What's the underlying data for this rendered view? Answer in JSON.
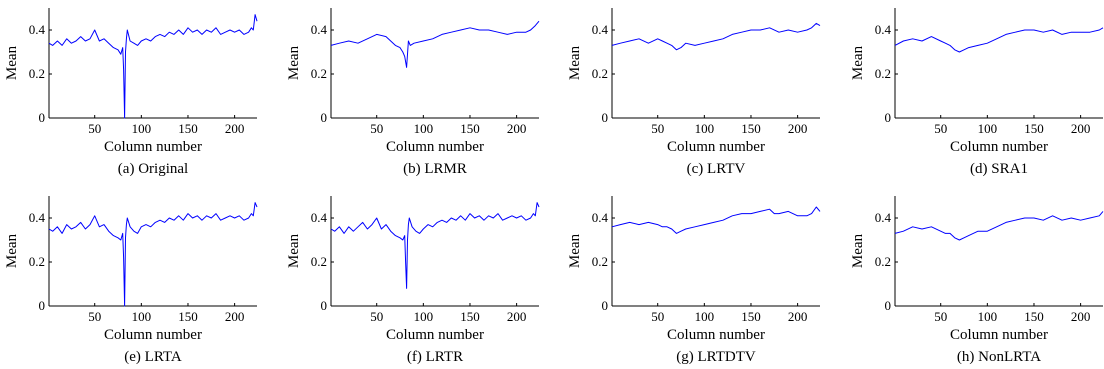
{
  "chart_data": [
    {
      "type": "line",
      "caption": "(a) Original",
      "xlabel": "Column number",
      "ylabel": "Mean",
      "xlim": [
        1,
        224
      ],
      "ylim": [
        0,
        0.5
      ],
      "xticks": [
        50,
        100,
        150,
        200
      ],
      "yticks": [
        0,
        0.2,
        0.4
      ],
      "yticklabels": [
        "0",
        "0.2",
        "0.4"
      ],
      "series_color": "#0000ff",
      "x": [
        1,
        5,
        10,
        15,
        20,
        25,
        30,
        35,
        40,
        45,
        50,
        55,
        60,
        65,
        70,
        75,
        78,
        80,
        81,
        82,
        83,
        84,
        85,
        88,
        92,
        96,
        100,
        105,
        110,
        115,
        120,
        125,
        130,
        135,
        140,
        145,
        150,
        155,
        160,
        165,
        170,
        175,
        180,
        185,
        190,
        195,
        200,
        205,
        210,
        215,
        218,
        220,
        222,
        224
      ],
      "y": [
        0.34,
        0.33,
        0.35,
        0.33,
        0.36,
        0.34,
        0.35,
        0.37,
        0.35,
        0.36,
        0.4,
        0.35,
        0.36,
        0.34,
        0.32,
        0.31,
        0.29,
        0.32,
        0.22,
        0.0,
        0.3,
        0.36,
        0.4,
        0.35,
        0.34,
        0.33,
        0.35,
        0.36,
        0.35,
        0.37,
        0.38,
        0.37,
        0.39,
        0.38,
        0.4,
        0.38,
        0.41,
        0.39,
        0.4,
        0.38,
        0.4,
        0.39,
        0.41,
        0.38,
        0.39,
        0.4,
        0.39,
        0.4,
        0.38,
        0.39,
        0.41,
        0.4,
        0.47,
        0.44
      ]
    },
    {
      "type": "line",
      "caption": "(b) LRMR",
      "xlabel": "Column number",
      "ylabel": "Mean",
      "xlim": [
        1,
        224
      ],
      "ylim": [
        0,
        0.5
      ],
      "xticks": [
        50,
        100,
        150,
        200
      ],
      "yticks": [
        0,
        0.2,
        0.4
      ],
      "yticklabels": [
        "0",
        "0.2",
        "0.4"
      ],
      "series_color": "#0000ff",
      "x": [
        1,
        10,
        20,
        30,
        40,
        50,
        60,
        65,
        70,
        75,
        78,
        80,
        82,
        84,
        86,
        90,
        100,
        110,
        120,
        130,
        140,
        150,
        160,
        170,
        180,
        190,
        200,
        210,
        215,
        220,
        224
      ],
      "y": [
        0.33,
        0.34,
        0.35,
        0.34,
        0.36,
        0.38,
        0.37,
        0.35,
        0.33,
        0.32,
        0.3,
        0.28,
        0.23,
        0.35,
        0.33,
        0.34,
        0.35,
        0.36,
        0.38,
        0.39,
        0.4,
        0.41,
        0.4,
        0.4,
        0.39,
        0.38,
        0.39,
        0.39,
        0.4,
        0.42,
        0.44
      ]
    },
    {
      "type": "line",
      "caption": "(c) LRTV",
      "xlabel": "Column number",
      "ylabel": "Mean",
      "xlim": [
        1,
        224
      ],
      "ylim": [
        0,
        0.5
      ],
      "xticks": [
        50,
        100,
        150,
        200
      ],
      "yticks": [
        0,
        0.2,
        0.4
      ],
      "yticklabels": [
        "0",
        "0.2",
        "0.4"
      ],
      "series_color": "#0000ff",
      "x": [
        1,
        10,
        20,
        30,
        40,
        50,
        55,
        60,
        65,
        70,
        75,
        80,
        90,
        100,
        110,
        120,
        130,
        140,
        150,
        160,
        170,
        180,
        190,
        200,
        210,
        215,
        220,
        224
      ],
      "y": [
        0.33,
        0.34,
        0.35,
        0.36,
        0.34,
        0.36,
        0.35,
        0.34,
        0.33,
        0.31,
        0.32,
        0.34,
        0.33,
        0.34,
        0.35,
        0.36,
        0.38,
        0.39,
        0.4,
        0.4,
        0.41,
        0.39,
        0.4,
        0.39,
        0.4,
        0.41,
        0.43,
        0.42
      ]
    },
    {
      "type": "line",
      "caption": "(d) SRA1",
      "xlabel": "Column number",
      "ylabel": "Mean",
      "xlim": [
        1,
        224
      ],
      "ylim": [
        0,
        0.5
      ],
      "xticks": [
        50,
        100,
        150,
        200
      ],
      "yticks": [
        0,
        0.2,
        0.4
      ],
      "yticklabels": [
        "0",
        "0.2",
        "0.4"
      ],
      "series_color": "#0000ff",
      "x": [
        1,
        10,
        20,
        30,
        40,
        50,
        55,
        60,
        65,
        70,
        75,
        80,
        90,
        100,
        110,
        120,
        130,
        140,
        150,
        160,
        170,
        180,
        190,
        200,
        210,
        220,
        224
      ],
      "y": [
        0.33,
        0.35,
        0.36,
        0.35,
        0.37,
        0.35,
        0.34,
        0.33,
        0.31,
        0.3,
        0.31,
        0.32,
        0.33,
        0.34,
        0.36,
        0.38,
        0.39,
        0.4,
        0.4,
        0.39,
        0.4,
        0.38,
        0.39,
        0.39,
        0.39,
        0.4,
        0.41
      ]
    },
    {
      "type": "line",
      "caption": "(e) LRTA",
      "xlabel": "Column number",
      "ylabel": "Mean",
      "xlim": [
        1,
        224
      ],
      "ylim": [
        0,
        0.5
      ],
      "xticks": [
        50,
        100,
        150,
        200
      ],
      "yticks": [
        0,
        0.2,
        0.4
      ],
      "yticklabels": [
        "0",
        "0.2",
        "0.4"
      ],
      "series_color": "#0000ff",
      "x": [
        1,
        5,
        10,
        15,
        20,
        25,
        30,
        35,
        40,
        45,
        50,
        55,
        60,
        65,
        70,
        75,
        78,
        80,
        81,
        82,
        83,
        84,
        85,
        88,
        92,
        96,
        100,
        105,
        110,
        115,
        120,
        125,
        130,
        135,
        140,
        145,
        150,
        155,
        160,
        165,
        170,
        175,
        180,
        185,
        190,
        195,
        200,
        205,
        210,
        215,
        218,
        220,
        222,
        224
      ],
      "y": [
        0.35,
        0.34,
        0.36,
        0.33,
        0.37,
        0.35,
        0.36,
        0.38,
        0.35,
        0.37,
        0.41,
        0.36,
        0.37,
        0.34,
        0.32,
        0.31,
        0.3,
        0.33,
        0.22,
        0.0,
        0.31,
        0.37,
        0.4,
        0.36,
        0.34,
        0.33,
        0.36,
        0.37,
        0.36,
        0.38,
        0.39,
        0.38,
        0.4,
        0.39,
        0.41,
        0.39,
        0.42,
        0.4,
        0.41,
        0.39,
        0.41,
        0.4,
        0.42,
        0.39,
        0.4,
        0.41,
        0.4,
        0.41,
        0.39,
        0.4,
        0.42,
        0.41,
        0.47,
        0.45
      ]
    },
    {
      "type": "line",
      "caption": "(f) LRTR",
      "xlabel": "Column number",
      "ylabel": "Mean",
      "xlim": [
        1,
        224
      ],
      "ylim": [
        0,
        0.5
      ],
      "xticks": [
        50,
        100,
        150,
        200
      ],
      "yticks": [
        0,
        0.2,
        0.4
      ],
      "yticklabels": [
        "0",
        "0.2",
        "0.4"
      ],
      "series_color": "#0000ff",
      "x": [
        1,
        5,
        10,
        15,
        20,
        25,
        30,
        35,
        40,
        45,
        50,
        55,
        60,
        65,
        70,
        75,
        78,
        80,
        81,
        82,
        83,
        84,
        85,
        88,
        92,
        96,
        100,
        105,
        110,
        115,
        120,
        125,
        130,
        135,
        140,
        145,
        150,
        155,
        160,
        165,
        170,
        175,
        180,
        185,
        190,
        195,
        200,
        205,
        210,
        215,
        218,
        220,
        222,
        224
      ],
      "y": [
        0.35,
        0.34,
        0.36,
        0.33,
        0.36,
        0.34,
        0.36,
        0.38,
        0.35,
        0.37,
        0.4,
        0.35,
        0.37,
        0.34,
        0.32,
        0.31,
        0.3,
        0.32,
        0.2,
        0.08,
        0.3,
        0.37,
        0.4,
        0.36,
        0.34,
        0.33,
        0.35,
        0.37,
        0.36,
        0.38,
        0.39,
        0.38,
        0.4,
        0.39,
        0.41,
        0.39,
        0.42,
        0.4,
        0.41,
        0.39,
        0.41,
        0.4,
        0.42,
        0.39,
        0.4,
        0.41,
        0.4,
        0.41,
        0.39,
        0.4,
        0.42,
        0.41,
        0.47,
        0.45
      ]
    },
    {
      "type": "line",
      "caption": "(g) LRTDTV",
      "xlabel": "Column number",
      "ylabel": "Mean",
      "xlim": [
        1,
        224
      ],
      "ylim": [
        0,
        0.5
      ],
      "xticks": [
        50,
        100,
        150,
        200
      ],
      "yticks": [
        0,
        0.2,
        0.4
      ],
      "yticklabels": [
        "0",
        "0.2",
        "0.4"
      ],
      "series_color": "#0000ff",
      "x": [
        1,
        10,
        20,
        30,
        40,
        50,
        55,
        60,
        65,
        70,
        75,
        80,
        90,
        100,
        110,
        120,
        130,
        140,
        150,
        160,
        170,
        175,
        180,
        190,
        200,
        210,
        215,
        220,
        224
      ],
      "y": [
        0.36,
        0.37,
        0.38,
        0.37,
        0.38,
        0.37,
        0.36,
        0.36,
        0.35,
        0.33,
        0.34,
        0.35,
        0.36,
        0.37,
        0.38,
        0.39,
        0.41,
        0.42,
        0.42,
        0.43,
        0.44,
        0.42,
        0.42,
        0.43,
        0.41,
        0.41,
        0.42,
        0.45,
        0.43
      ]
    },
    {
      "type": "line",
      "caption": "(h) NonLRTA",
      "xlabel": "Column number",
      "ylabel": "Mean",
      "xlim": [
        1,
        224
      ],
      "ylim": [
        0,
        0.5
      ],
      "xticks": [
        50,
        100,
        150,
        200
      ],
      "yticks": [
        0,
        0.2,
        0.4
      ],
      "yticklabels": [
        "0",
        "0.2",
        "0.4"
      ],
      "series_color": "#0000ff",
      "x": [
        1,
        10,
        20,
        30,
        40,
        50,
        55,
        60,
        65,
        70,
        75,
        80,
        90,
        100,
        110,
        120,
        130,
        140,
        150,
        160,
        170,
        180,
        190,
        200,
        210,
        220,
        224
      ],
      "y": [
        0.33,
        0.34,
        0.36,
        0.35,
        0.36,
        0.34,
        0.33,
        0.33,
        0.31,
        0.3,
        0.31,
        0.32,
        0.34,
        0.34,
        0.36,
        0.38,
        0.39,
        0.4,
        0.4,
        0.39,
        0.41,
        0.39,
        0.4,
        0.39,
        0.4,
        0.41,
        0.43
      ]
    }
  ]
}
